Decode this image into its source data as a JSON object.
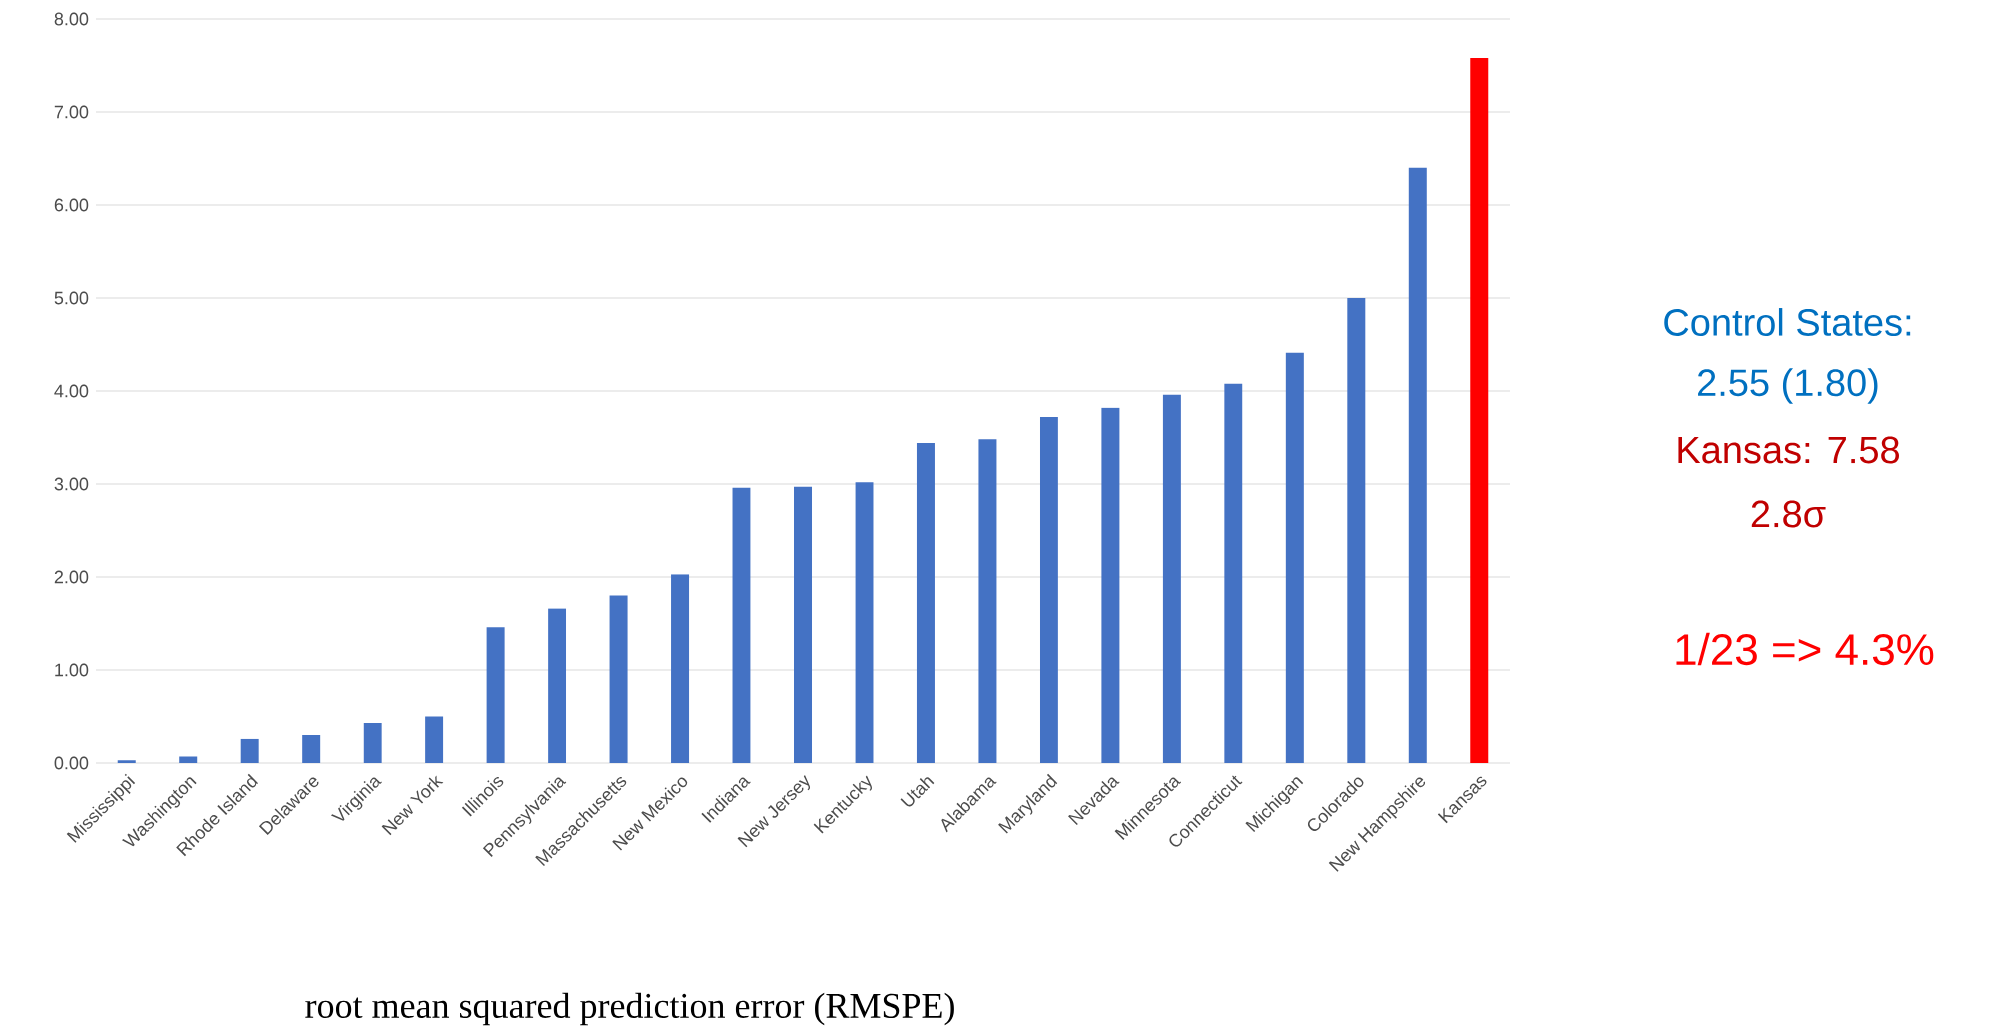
{
  "chart_data": {
    "type": "bar",
    "categories": [
      "Mississippi",
      "Washington",
      "Rhode Island",
      "Delaware",
      "Virginia",
      "New York",
      "Illinois",
      "Pennsylvania",
      "Massachusetts",
      "New Mexico",
      "Indiana",
      "New Jersey",
      "Kentucky",
      "Utah",
      "Alabama",
      "Maryland",
      "Nevada",
      "Minnesota",
      "Connecticut",
      "Michigan",
      "Colorado",
      "New Hampshire",
      "Kansas"
    ],
    "values": [
      0.03,
      0.07,
      0.26,
      0.3,
      0.43,
      0.5,
      1.46,
      1.66,
      1.8,
      2.03,
      2.96,
      2.97,
      3.02,
      3.44,
      3.48,
      3.72,
      3.82,
      3.96,
      4.08,
      4.41,
      5.0,
      6.4,
      7.58
    ],
    "colors": [
      "#4472c4",
      "#4472c4",
      "#4472c4",
      "#4472c4",
      "#4472c4",
      "#4472c4",
      "#4472c4",
      "#4472c4",
      "#4472c4",
      "#4472c4",
      "#4472c4",
      "#4472c4",
      "#4472c4",
      "#4472c4",
      "#4472c4",
      "#4472c4",
      "#4472c4",
      "#4472c4",
      "#4472c4",
      "#4472c4",
      "#4472c4",
      "#4472c4",
      "#ff0000"
    ],
    "ylim": [
      0,
      8
    ],
    "yticks": [
      {
        "value": 0,
        "label": "0.00"
      },
      {
        "value": 1,
        "label": "1.00"
      },
      {
        "value": 2,
        "label": "2.00"
      },
      {
        "value": 3,
        "label": "3.00"
      },
      {
        "value": 4,
        "label": "4.00"
      },
      {
        "value": 5,
        "label": "5.00"
      },
      {
        "value": 6,
        "label": "6.00"
      },
      {
        "value": 7,
        "label": "7.00"
      },
      {
        "value": 8,
        "label": "8.00"
      }
    ],
    "grid": "y",
    "annotations": [
      "Control States:",
      "2.55 (1.80)",
      "Kansas: 7.58",
      "2.8σ",
      "1/23 => 4.3%",
      "root mean squared prediction error (RMSPE)"
    ]
  }
}
